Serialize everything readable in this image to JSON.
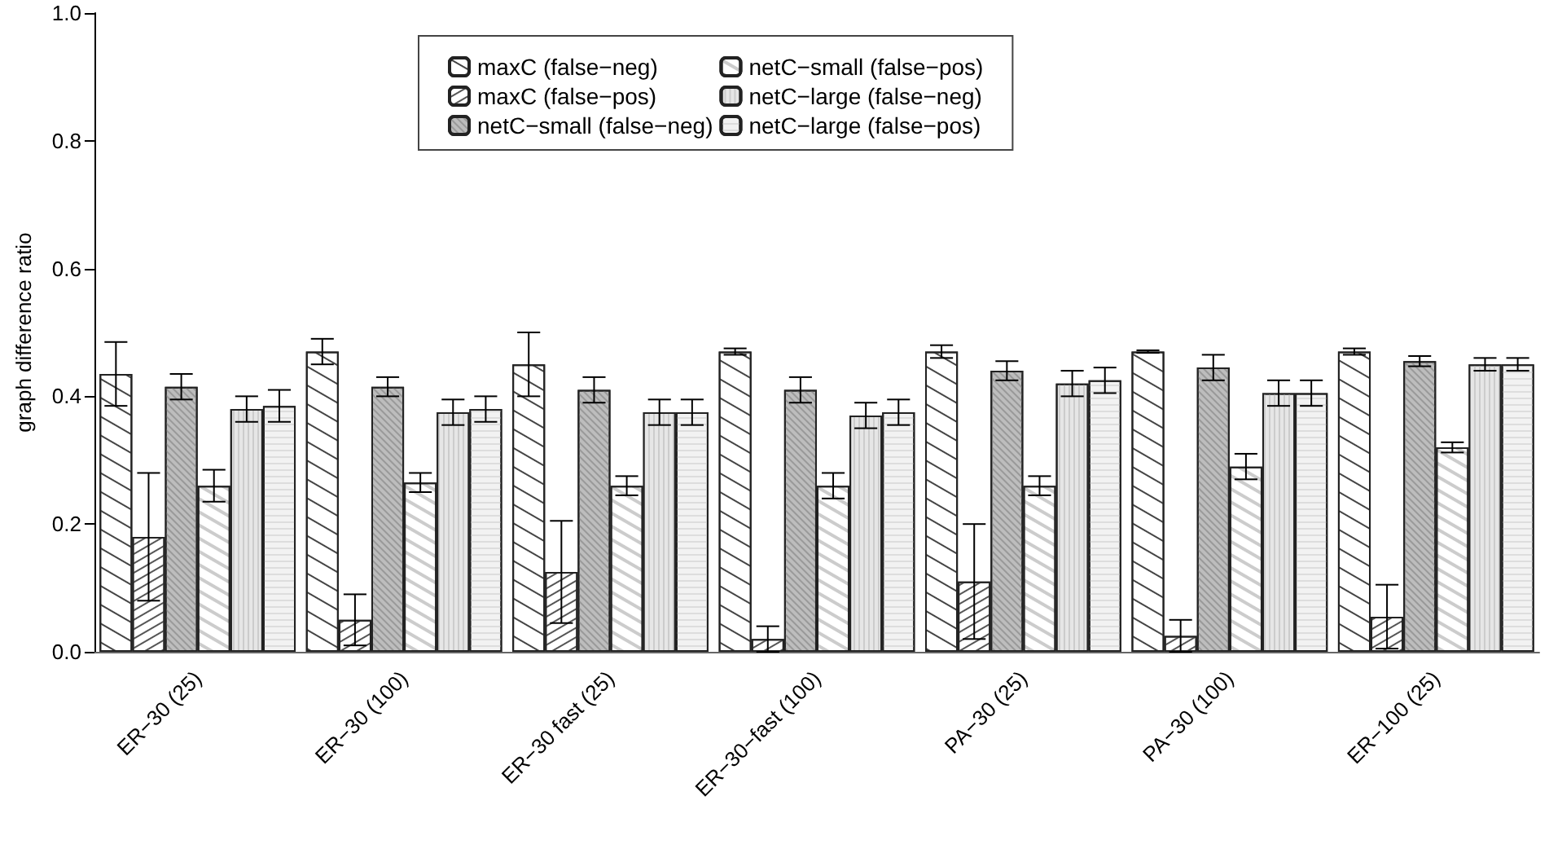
{
  "chart_data": {
    "type": "bar",
    "ylabel": "graph difference ratio",
    "categories": [
      "ER−30 (25)",
      "ER−30 (100)",
      "ER−30 fast (25)",
      "ER−30−fast (100)",
      "PA−30 (25)",
      "PA−30 (100)",
      "ER−100 (25)"
    ],
    "series": [
      {
        "name": "maxC (false−neg)",
        "color": "#ffffff",
        "values": [
          0.435,
          0.47,
          0.45,
          0.47,
          0.47,
          0.47,
          0.47
        ],
        "errors": [
          0.05,
          0.02,
          0.05,
          0.005,
          0.01,
          0.002,
          0.005
        ]
      },
      {
        "name": "maxC (false−pos)",
        "color": "#ffffff",
        "values": [
          0.18,
          0.05,
          0.125,
          0.02,
          0.11,
          0.025,
          0.055
        ],
        "errors": [
          0.1,
          0.04,
          0.08,
          0.02,
          0.09,
          0.025,
          0.05
        ]
      },
      {
        "name": "netC−small (false−neg)",
        "color": "#bdbdbd",
        "values": [
          0.415,
          0.415,
          0.41,
          0.41,
          0.44,
          0.445,
          0.455
        ],
        "errors": [
          0.02,
          0.015,
          0.02,
          0.02,
          0.015,
          0.02,
          0.008
        ]
      },
      {
        "name": "netC−small (false−pos)",
        "color": "#ffffff",
        "values": [
          0.26,
          0.265,
          0.26,
          0.26,
          0.26,
          0.29,
          0.32
        ],
        "errors": [
          0.025,
          0.015,
          0.015,
          0.02,
          0.015,
          0.02,
          0.008
        ]
      },
      {
        "name": "netC−large (false−neg)",
        "color": "#e6e6e6",
        "values": [
          0.38,
          0.375,
          0.375,
          0.37,
          0.42,
          0.405,
          0.45
        ],
        "errors": [
          0.02,
          0.02,
          0.02,
          0.02,
          0.02,
          0.02,
          0.01
        ]
      },
      {
        "name": "netC−large (false−pos)",
        "color": "#f2f2f2",
        "values": [
          0.385,
          0.38,
          0.375,
          0.375,
          0.425,
          0.405,
          0.45
        ],
        "errors": [
          0.025,
          0.02,
          0.02,
          0.02,
          0.02,
          0.02,
          0.01
        ]
      }
    ],
    "ylim": [
      0,
      1
    ],
    "yticks": [
      {
        "value": 0,
        "label": "0.0"
      },
      0.2,
      0.4,
      0.6,
      0.8,
      {
        "value": 1,
        "label": "1.0"
      }
    ],
    "grid": false,
    "legend": "top"
  }
}
